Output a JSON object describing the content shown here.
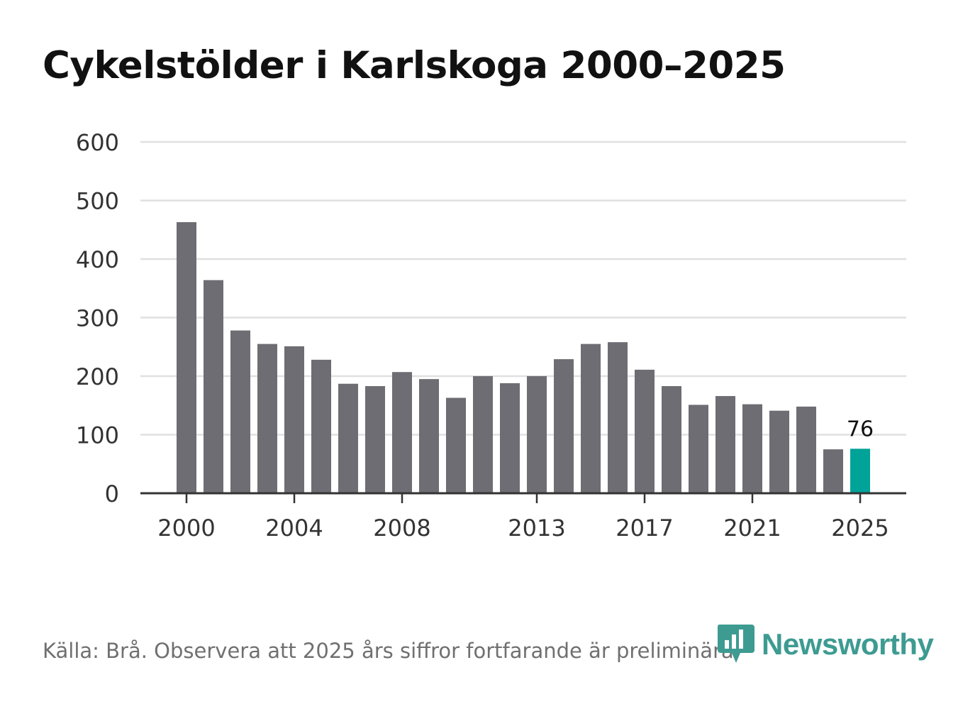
{
  "title": "Cykelstölder i Karlskoga 2000–2025",
  "source": "Källa: Brå. Observera att 2025 års siffror fortfarande är preliminära.",
  "logo": {
    "text": "Newsworthy",
    "icon": "newsworthy-logo-icon"
  },
  "colors": {
    "bar": "#6e6d73",
    "highlight": "#00a398",
    "grid": "#e0e0e0",
    "axis": "#333333",
    "text": "#333333"
  },
  "chart_data": {
    "type": "bar",
    "title": "Cykelstölder i Karlskoga 2000–2025",
    "xlabel": "",
    "ylabel": "",
    "ylim": [
      0,
      600
    ],
    "yticks": [
      0,
      100,
      200,
      300,
      400,
      500,
      600
    ],
    "xtick_labels": [
      "2000",
      "2004",
      "2008",
      "2013",
      "2017",
      "2021",
      "2025"
    ],
    "categories": [
      "2000",
      "2001",
      "2002",
      "2003",
      "2004",
      "2005",
      "2006",
      "2007",
      "2008",
      "2009",
      "2010",
      "2011",
      "2012",
      "2013",
      "2014",
      "2015",
      "2016",
      "2017",
      "2018",
      "2019",
      "2020",
      "2021",
      "2022",
      "2023",
      "2024",
      "2025"
    ],
    "values": [
      463,
      364,
      278,
      255,
      251,
      228,
      187,
      183,
      207,
      195,
      163,
      200,
      188,
      200,
      229,
      255,
      258,
      211,
      183,
      151,
      166,
      152,
      141,
      148,
      75,
      76
    ],
    "highlight_category": "2025",
    "data_labels": [
      {
        "category": "2025",
        "label": "76"
      }
    ],
    "grid": true
  }
}
